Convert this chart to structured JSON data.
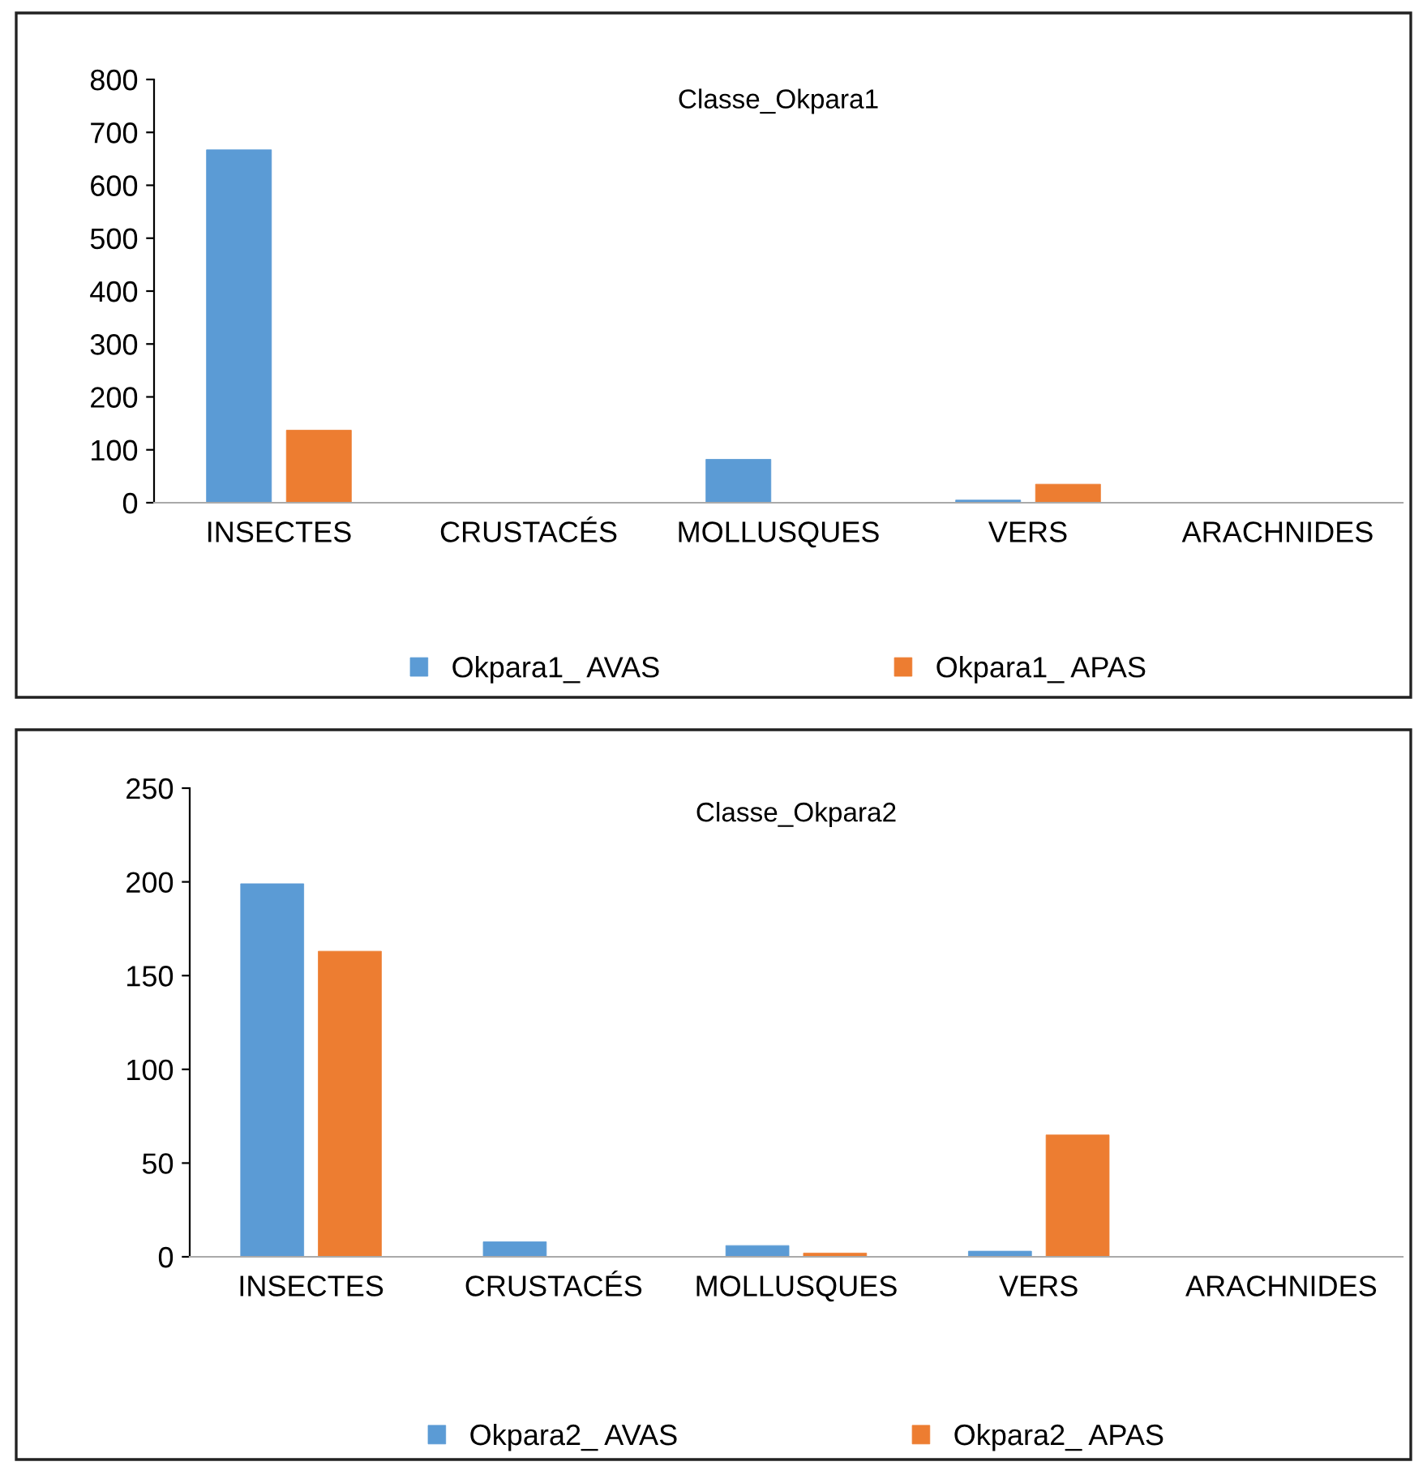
{
  "chart_data": [
    {
      "type": "bar",
      "title": "Classe_Okpara1",
      "categories": [
        "INSECTES",
        "CRUSTACÉS",
        "MOLLUSQUES",
        "VERS",
        "ARACHNIDES"
      ],
      "series": [
        {
          "name": "Okpara1_ AVAS",
          "color": "#5b9bd5",
          "values": [
            667,
            0,
            82,
            5,
            0
          ]
        },
        {
          "name": "Okpara1_ APAS",
          "color": "#ed7d31",
          "values": [
            137,
            0,
            0,
            35,
            0
          ]
        }
      ],
      "ylim": [
        0,
        800
      ],
      "yticks": [
        0,
        100,
        200,
        300,
        400,
        500,
        600,
        700,
        800
      ],
      "grid": false,
      "legend": "bottom"
    },
    {
      "type": "bar",
      "title": "Classe_Okpara2",
      "categories": [
        "INSECTES",
        "CRUSTACÉS",
        "MOLLUSQUES",
        "VERS",
        "ARACHNIDES"
      ],
      "series": [
        {
          "name": "Okpara2_ AVAS",
          "color": "#5b9bd5",
          "values": [
            199,
            8,
            6,
            3,
            0
          ]
        },
        {
          "name": "Okpara2_ APAS",
          "color": "#ed7d31",
          "values": [
            163,
            0,
            2,
            65,
            0
          ]
        }
      ],
      "ylim": [
        0,
        250
      ],
      "yticks": [
        0,
        50,
        100,
        150,
        200,
        250
      ],
      "grid": false,
      "legend": "bottom"
    }
  ]
}
